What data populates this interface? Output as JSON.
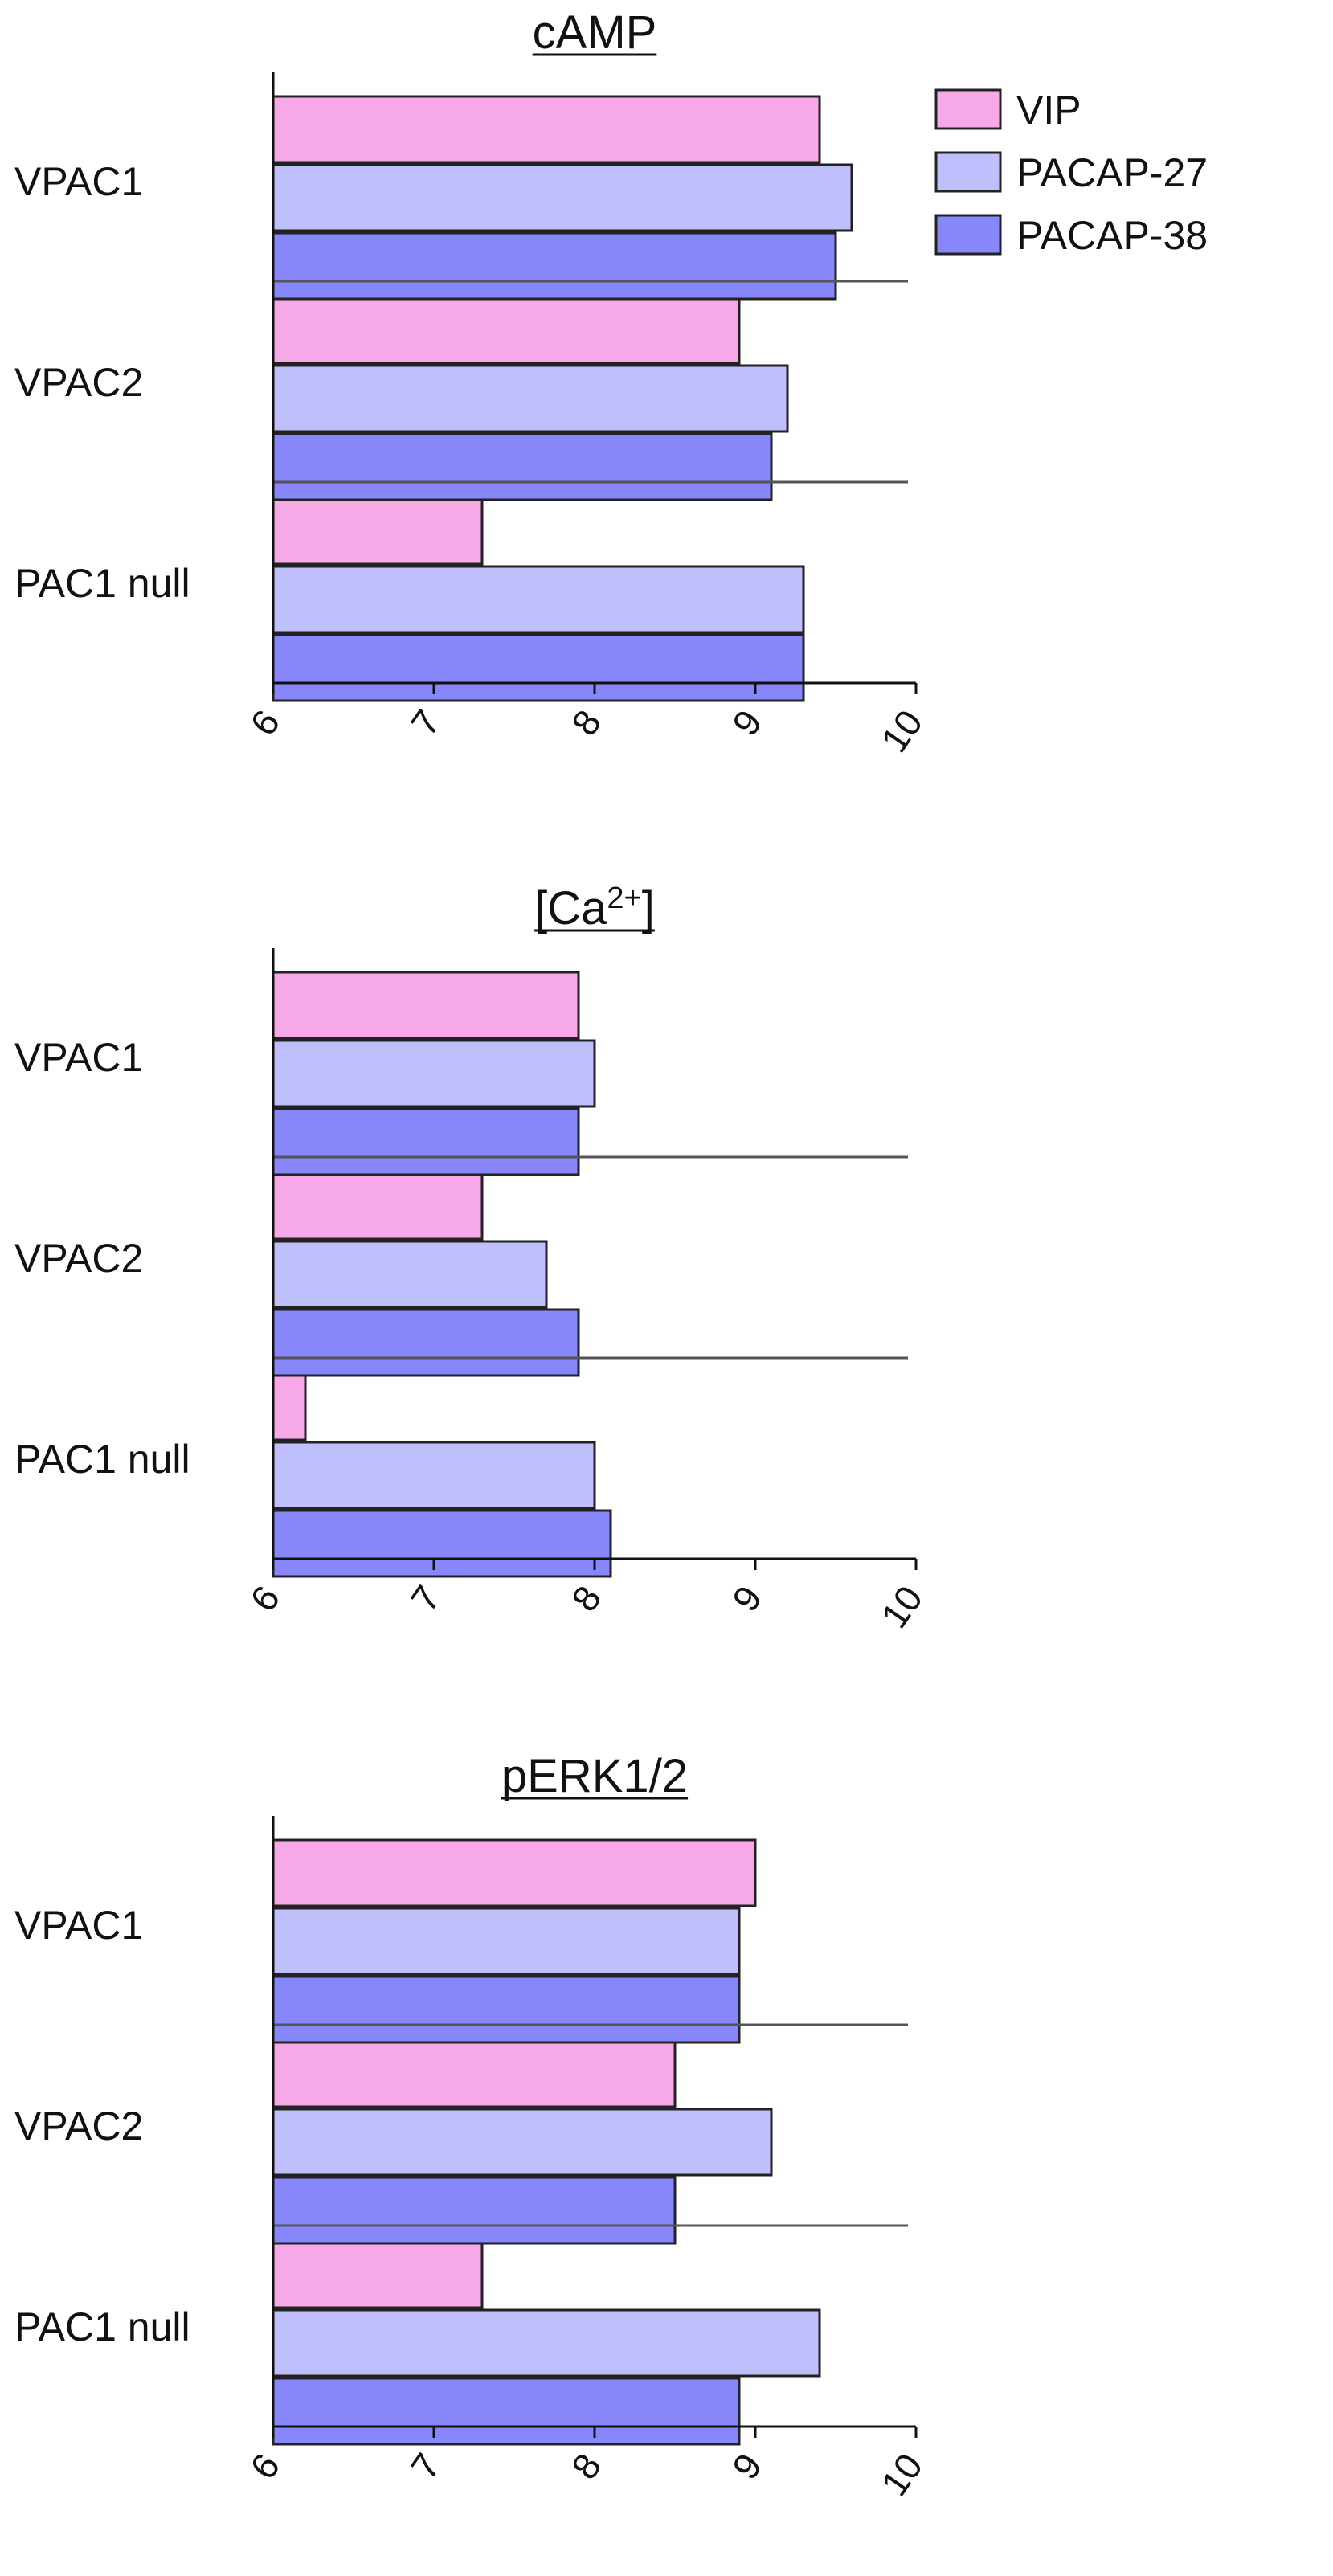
{
  "legend": [
    {
      "label": "VIP",
      "color": "#f6a9e6"
    },
    {
      "label": "PACAP-27",
      "color": "#bfbffb"
    },
    {
      "label": "PACAP-38",
      "color": "#8787fb"
    }
  ],
  "chart_data": [
    {
      "type": "bar",
      "orientation": "horizontal",
      "title": "cAMP",
      "categories": [
        "VPAC1",
        "VPAC2",
        "PAC1 null"
      ],
      "series": [
        {
          "name": "VIP",
          "values": [
            9.4,
            8.9,
            7.3
          ]
        },
        {
          "name": "PACAP-27",
          "values": [
            9.6,
            9.2,
            9.3
          ]
        },
        {
          "name": "PACAP-38",
          "values": [
            9.5,
            9.1,
            9.3
          ]
        }
      ],
      "xlim": [
        6,
        10
      ],
      "ticks": [
        "6",
        "7",
        "8",
        "9",
        "10"
      ],
      "legend_position": "top-right"
    },
    {
      "type": "bar",
      "orientation": "horizontal",
      "title": "[Ca2+]",
      "title_parts": {
        "base": "[Ca",
        "sup": "2+",
        "tail": "]"
      },
      "categories": [
        "VPAC1",
        "VPAC2",
        "PAC1 null"
      ],
      "series": [
        {
          "name": "VIP",
          "values": [
            7.9,
            7.3,
            6.2
          ]
        },
        {
          "name": "PACAP-27",
          "values": [
            8.0,
            7.7,
            8.0
          ]
        },
        {
          "name": "PACAP-38",
          "values": [
            7.9,
            7.9,
            8.1
          ]
        }
      ],
      "xlim": [
        6,
        10
      ],
      "ticks": [
        "6",
        "7",
        "8",
        "9",
        "10"
      ]
    },
    {
      "type": "bar",
      "orientation": "horizontal",
      "title": "pERK1/2",
      "categories": [
        "VPAC1",
        "VPAC2",
        "PAC1 null"
      ],
      "series": [
        {
          "name": "VIP",
          "values": [
            9.0,
            8.5,
            7.3
          ]
        },
        {
          "name": "PACAP-27",
          "values": [
            8.9,
            9.1,
            9.4
          ]
        },
        {
          "name": "PACAP-38",
          "values": [
            8.9,
            8.5,
            8.9
          ]
        }
      ],
      "xlim": [
        6,
        10
      ],
      "ticks": [
        "6",
        "7",
        "8",
        "9",
        "10"
      ]
    }
  ]
}
